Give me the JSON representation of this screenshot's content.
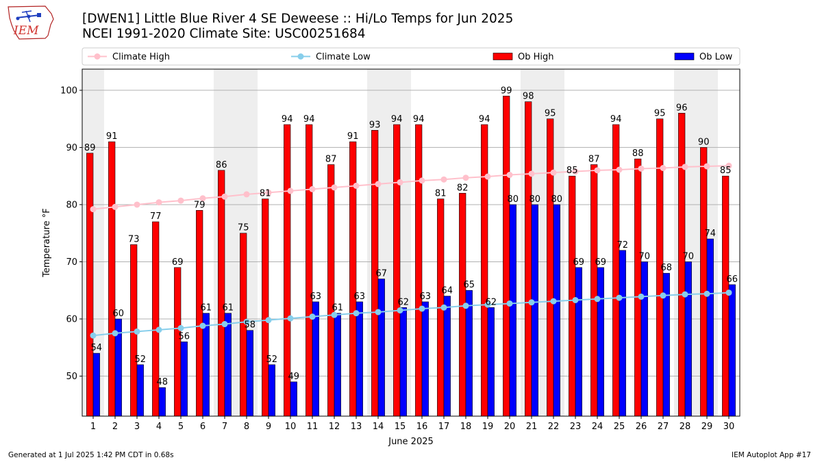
{
  "header": {
    "title_line1": "[DWEN1] Little Blue River 4 SE Deweese :: Hi/Lo Temps for Jun 2025",
    "title_line2": "NCEI 1991-2020 Climate Site: USC00251684"
  },
  "logo": {
    "text": "IEM",
    "icon": "iowa-state-logo-icon"
  },
  "footer": {
    "left": "Generated at 1 Jul 2025 1:42 PM CDT in 0.68s",
    "right": "IEM Autoplot App #17"
  },
  "colors": {
    "ob_high": "#ff0000",
    "ob_low": "#0000ff",
    "climate_high": "#ffc0cb",
    "climate_low": "#87ceeb",
    "weekend_shade": "#eeeeee",
    "grid": "#b0b0b0"
  },
  "chart_data": {
    "type": "bar",
    "xlabel": "June 2025",
    "ylabel": "Temperature °F",
    "ylim": [
      43,
      103.7
    ],
    "yticks": [
      50,
      60,
      70,
      80,
      90,
      100
    ],
    "grid": "horizontal",
    "legend_position": "top",
    "categories": [
      1,
      2,
      3,
      4,
      5,
      6,
      7,
      8,
      9,
      10,
      11,
      12,
      13,
      14,
      15,
      16,
      17,
      18,
      19,
      20,
      21,
      22,
      23,
      24,
      25,
      26,
      27,
      28,
      29,
      30
    ],
    "shaded_days": [
      1,
      7,
      8,
      14,
      15,
      21,
      22,
      28,
      29
    ],
    "series": [
      {
        "name": "Ob High",
        "kind": "bar",
        "values": [
          89,
          91,
          73,
          77,
          69,
          79,
          86,
          75,
          81,
          94,
          94,
          87,
          91,
          93,
          94,
          94,
          81,
          82,
          94,
          99,
          98,
          95,
          85,
          87,
          94,
          88,
          95,
          96,
          90,
          85
        ]
      },
      {
        "name": "Ob Low",
        "kind": "bar",
        "values": [
          54,
          60,
          52,
          48,
          56,
          61,
          61,
          58,
          52,
          49,
          63,
          61,
          63,
          67,
          62,
          63,
          64,
          65,
          62,
          80,
          80,
          80,
          69,
          69,
          72,
          70,
          68,
          70,
          74,
          66
        ]
      },
      {
        "name": "Climate High",
        "kind": "line",
        "values": [
          79.2,
          79.6,
          80.0,
          80.4,
          80.7,
          81.1,
          81.4,
          81.8,
          82.1,
          82.4,
          82.7,
          83.0,
          83.3,
          83.6,
          83.9,
          84.2,
          84.4,
          84.7,
          84.9,
          85.2,
          85.4,
          85.6,
          85.8,
          86.0,
          86.1,
          86.3,
          86.4,
          86.6,
          86.7,
          86.8
        ]
      },
      {
        "name": "Climate Low",
        "kind": "line",
        "values": [
          57.1,
          57.5,
          57.8,
          58.1,
          58.4,
          58.8,
          59.1,
          59.5,
          59.8,
          60.1,
          60.4,
          60.7,
          61.0,
          61.2,
          61.5,
          61.8,
          62.0,
          62.3,
          62.5,
          62.7,
          62.9,
          63.1,
          63.3,
          63.5,
          63.7,
          63.9,
          64.1,
          64.3,
          64.4,
          64.6
        ]
      }
    ]
  }
}
